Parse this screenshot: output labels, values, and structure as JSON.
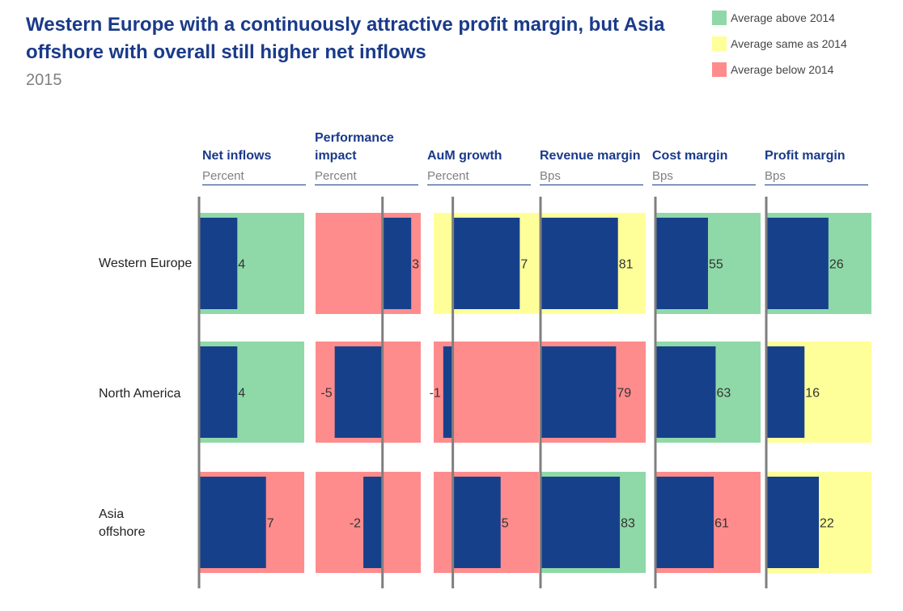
{
  "title": "Western Europe with a continuously attractive profit margin, but Asia offshore with overall still higher net inflows",
  "subtitle": "2015",
  "legend": [
    {
      "label": "Average above 2014",
      "color": "#8fd9a8"
    },
    {
      "label": "Average same as 2014",
      "color": "#ffff99"
    },
    {
      "label": "Average below 2014",
      "color": "#ff8c8c"
    }
  ],
  "chart_data": {
    "type": "bar",
    "orientation": "horizontal",
    "layout": "small multiples",
    "bar_color": "#17408b",
    "rows": [
      "Western Europe",
      "North America",
      "Asia offshore"
    ],
    "columns": [
      {
        "name": "Net inflows",
        "unit": "Percent",
        "xlim": [
          0,
          11
        ],
        "values": [
          4,
          4,
          7
        ],
        "status": [
          "above",
          "above",
          "below"
        ]
      },
      {
        "name": "Performance impact",
        "unit": "Percent",
        "xlim": [
          -7,
          4
        ],
        "values": [
          3,
          -5,
          -2
        ],
        "status": [
          "below",
          "below",
          "below"
        ]
      },
      {
        "name": "AuM growth",
        "unit": "Percent",
        "xlim": [
          -2,
          9
        ],
        "values": [
          7,
          -1,
          5
        ],
        "status": [
          "same",
          "below",
          "below"
        ]
      },
      {
        "name": "Revenue margin",
        "unit": "Bps",
        "xlim": [
          0,
          110
        ],
        "values": [
          81,
          79,
          83
        ],
        "status": [
          "same",
          "below",
          "above"
        ]
      },
      {
        "name": "Cost margin",
        "unit": "Bps",
        "xlim": [
          0,
          110
        ],
        "values": [
          55,
          63,
          61
        ],
        "status": [
          "above",
          "above",
          "below"
        ]
      },
      {
        "name": "Profit margin",
        "unit": "Bps",
        "xlim": [
          0,
          44
        ],
        "values": [
          26,
          16,
          22
        ],
        "status": [
          "above",
          "same",
          "same"
        ]
      }
    ]
  }
}
